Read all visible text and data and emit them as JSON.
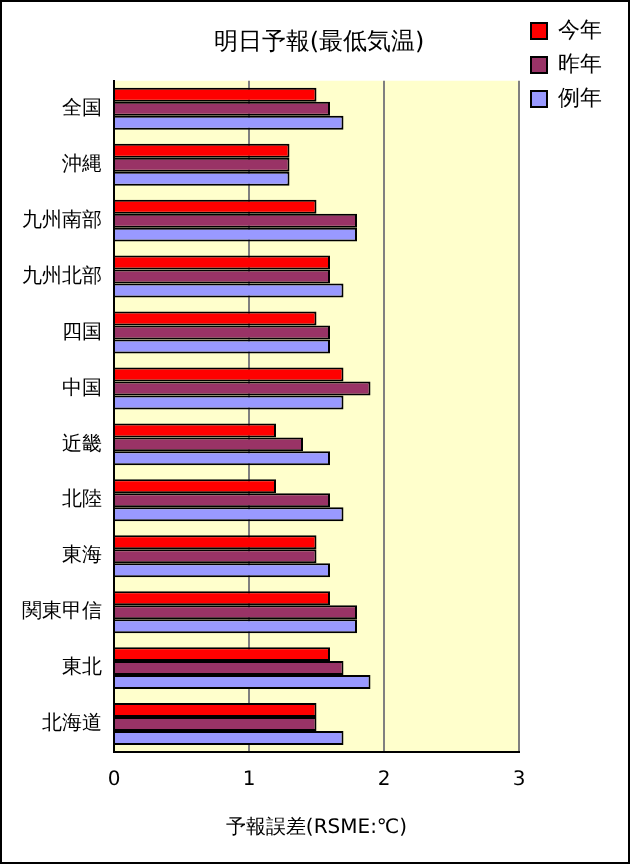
{
  "chart_data": {
    "type": "bar",
    "orientation": "horizontal",
    "title": "明日予報(最低気温)",
    "xlabel": "予報誤差(RSME:℃)",
    "categories": [
      "全国",
      "沖縄",
      "九州南部",
      "九州北部",
      "四国",
      "中国",
      "近畿",
      "北陸",
      "東海",
      "関東甲信",
      "東北",
      "北海道"
    ],
    "series": [
      {
        "name": "今年",
        "color": "#ff0000",
        "values": [
          1.5,
          1.3,
          1.5,
          1.6,
          1.5,
          1.7,
          1.2,
          1.2,
          1.5,
          1.6,
          1.6,
          1.5
        ]
      },
      {
        "name": "昨年",
        "color": "#993366",
        "values": [
          1.6,
          1.3,
          1.8,
          1.6,
          1.6,
          1.9,
          1.4,
          1.6,
          1.5,
          1.8,
          1.7,
          1.5
        ]
      },
      {
        "name": "例年",
        "color": "#9999ff",
        "values": [
          1.7,
          1.3,
          1.8,
          1.7,
          1.6,
          1.7,
          1.6,
          1.7,
          1.6,
          1.8,
          1.9,
          1.7
        ]
      }
    ],
    "xlim": [
      0,
      3
    ],
    "xticks": [
      0,
      1,
      2,
      3
    ],
    "grid": "x",
    "legend": "top right"
  }
}
